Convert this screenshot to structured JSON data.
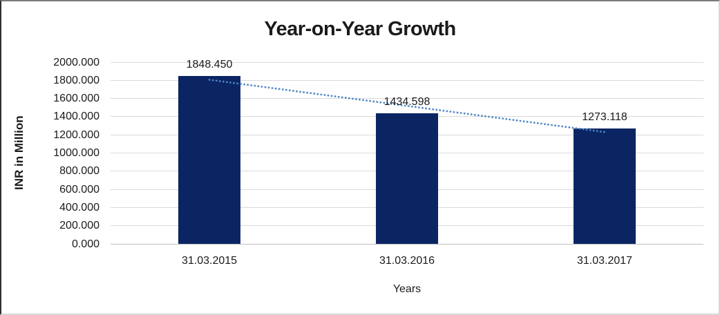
{
  "chart_data": {
    "type": "bar",
    "title": "Year-on-Year Growth",
    "xlabel": "Years",
    "ylabel": "INR in Million",
    "categories": [
      "31.03.2015",
      "31.03.2016",
      "31.03.2017"
    ],
    "values": [
      1848.45,
      1434.598,
      1273.118
    ],
    "data_labels": [
      "1848.450",
      "1434.598",
      "1273.118"
    ],
    "ylim": [
      0,
      2000
    ],
    "ytick_step": 200,
    "ytick_labels": [
      "0.000",
      "200.000",
      "400.000",
      "600.000",
      "800.000",
      "1000.000",
      "1200.000",
      "1400.000",
      "1600.000",
      "1800.000",
      "2000.000"
    ],
    "grid": "horizontal",
    "legend": "none",
    "bar_color": "#0b2563",
    "trendline": {
      "type": "linear",
      "style": "dotted",
      "color": "#4d86c6"
    },
    "gridline_color": "#d9d9d9",
    "axis_line_color": "#bfbfbf",
    "text_color": "#1a1a1a"
  }
}
